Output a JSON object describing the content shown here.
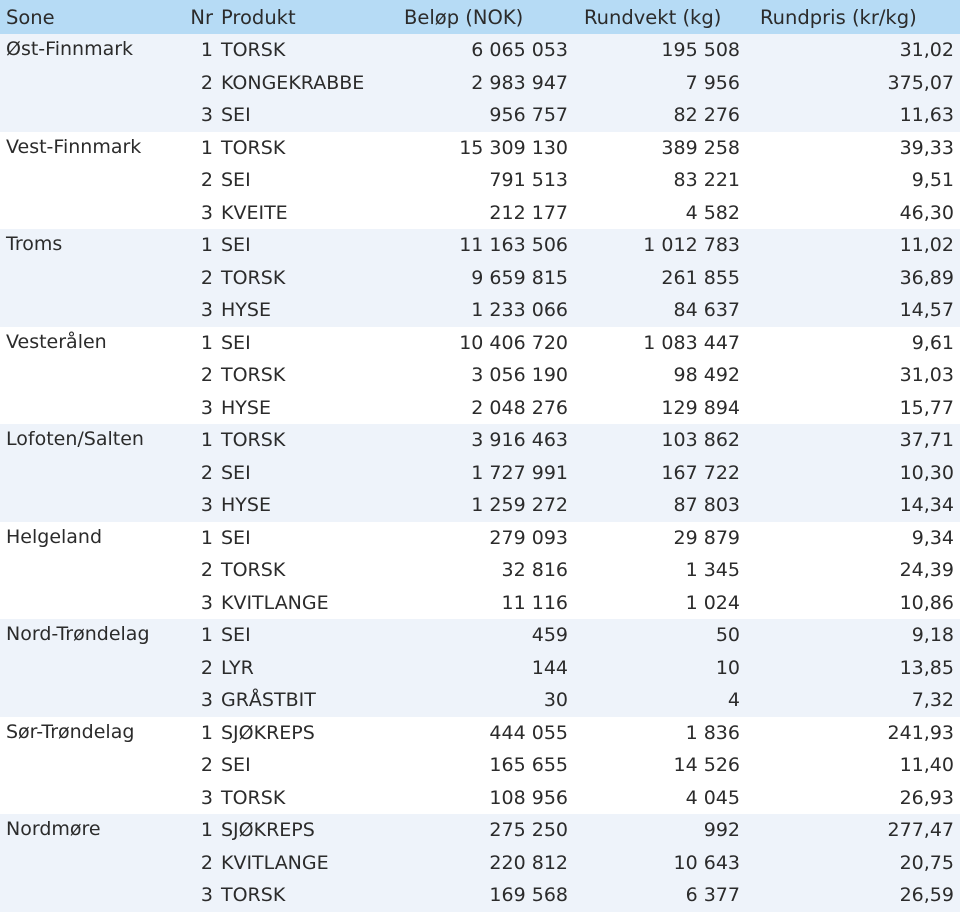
{
  "header": {
    "sone": "Sone",
    "nr": "Nr",
    "produkt": "Produkt",
    "belop": "Beløp (NOK)",
    "rundvekt": "Rundvekt (kg)",
    "rundpris": "Rundpris (kr/kg)"
  },
  "zones": [
    {
      "name": "Øst-Finnmark",
      "rows": [
        {
          "nr": "1",
          "produkt": "TORSK",
          "belop": "6 065 053",
          "rundvekt": "195 508",
          "rundpris": "31,02"
        },
        {
          "nr": "2",
          "produkt": "KONGEKRABBE",
          "belop": "2 983 947",
          "rundvekt": "7 956",
          "rundpris": "375,07"
        },
        {
          "nr": "3",
          "produkt": "SEI",
          "belop": "956 757",
          "rundvekt": "82 276",
          "rundpris": "11,63"
        }
      ]
    },
    {
      "name": "Vest-Finnmark",
      "rows": [
        {
          "nr": "1",
          "produkt": "TORSK",
          "belop": "15 309 130",
          "rundvekt": "389 258",
          "rundpris": "39,33"
        },
        {
          "nr": "2",
          "produkt": "SEI",
          "belop": "791 513",
          "rundvekt": "83 221",
          "rundpris": "9,51"
        },
        {
          "nr": "3",
          "produkt": "KVEITE",
          "belop": "212 177",
          "rundvekt": "4 582",
          "rundpris": "46,30"
        }
      ]
    },
    {
      "name": "Troms",
      "rows": [
        {
          "nr": "1",
          "produkt": "SEI",
          "belop": "11 163 506",
          "rundvekt": "1 012 783",
          "rundpris": "11,02"
        },
        {
          "nr": "2",
          "produkt": "TORSK",
          "belop": "9 659 815",
          "rundvekt": "261 855",
          "rundpris": "36,89"
        },
        {
          "nr": "3",
          "produkt": "HYSE",
          "belop": "1 233 066",
          "rundvekt": "84 637",
          "rundpris": "14,57"
        }
      ]
    },
    {
      "name": "Vesterålen",
      "rows": [
        {
          "nr": "1",
          "produkt": "SEI",
          "belop": "10 406 720",
          "rundvekt": "1 083 447",
          "rundpris": "9,61"
        },
        {
          "nr": "2",
          "produkt": "TORSK",
          "belop": "3 056 190",
          "rundvekt": "98 492",
          "rundpris": "31,03"
        },
        {
          "nr": "3",
          "produkt": "HYSE",
          "belop": "2 048 276",
          "rundvekt": "129 894",
          "rundpris": "15,77"
        }
      ]
    },
    {
      "name": "Lofoten/Salten",
      "rows": [
        {
          "nr": "1",
          "produkt": "TORSK",
          "belop": "3 916 463",
          "rundvekt": "103 862",
          "rundpris": "37,71"
        },
        {
          "nr": "2",
          "produkt": "SEI",
          "belop": "1 727 991",
          "rundvekt": "167 722",
          "rundpris": "10,30"
        },
        {
          "nr": "3",
          "produkt": "HYSE",
          "belop": "1 259 272",
          "rundvekt": "87 803",
          "rundpris": "14,34"
        }
      ]
    },
    {
      "name": "Helgeland",
      "rows": [
        {
          "nr": "1",
          "produkt": "SEI",
          "belop": "279 093",
          "rundvekt": "29 879",
          "rundpris": "9,34"
        },
        {
          "nr": "2",
          "produkt": "TORSK",
          "belop": "32 816",
          "rundvekt": "1 345",
          "rundpris": "24,39"
        },
        {
          "nr": "3",
          "produkt": "KVITLANGE",
          "belop": "11 116",
          "rundvekt": "1 024",
          "rundpris": "10,86"
        }
      ]
    },
    {
      "name": "Nord-Trøndelag",
      "rows": [
        {
          "nr": "1",
          "produkt": "SEI",
          "belop": "459",
          "rundvekt": "50",
          "rundpris": "9,18"
        },
        {
          "nr": "2",
          "produkt": "LYR",
          "belop": "144",
          "rundvekt": "10",
          "rundpris": "13,85"
        },
        {
          "nr": "3",
          "produkt": "GRÅSTBIT",
          "belop": "30",
          "rundvekt": "4",
          "rundpris": "7,32"
        }
      ]
    },
    {
      "name": "Sør-Trøndelag",
      "rows": [
        {
          "nr": "1",
          "produkt": "SJØKREPS",
          "belop": "444 055",
          "rundvekt": "1 836",
          "rundpris": "241,93"
        },
        {
          "nr": "2",
          "produkt": "SEI",
          "belop": "165 655",
          "rundvekt": "14 526",
          "rundpris": "11,40"
        },
        {
          "nr": "3",
          "produkt": "TORSK",
          "belop": "108 956",
          "rundvekt": "4 045",
          "rundpris": "26,93"
        }
      ]
    },
    {
      "name": "Nordmøre",
      "rows": [
        {
          "nr": "1",
          "produkt": "SJØKREPS",
          "belop": "275 250",
          "rundvekt": "992",
          "rundpris": "277,47"
        },
        {
          "nr": "2",
          "produkt": "KVITLANGE",
          "belop": "220 812",
          "rundvekt": "10 643",
          "rundpris": "20,75"
        },
        {
          "nr": "3",
          "produkt": "TORSK",
          "belop": "169 568",
          "rundvekt": "6 377",
          "rundpris": "26,59"
        }
      ]
    }
  ],
  "colors": {
    "header_bg": "#b6dbf5",
    "band_shaded": "#eef3fa",
    "band_plain": "#ffffff",
    "text": "#2b2b2b"
  }
}
